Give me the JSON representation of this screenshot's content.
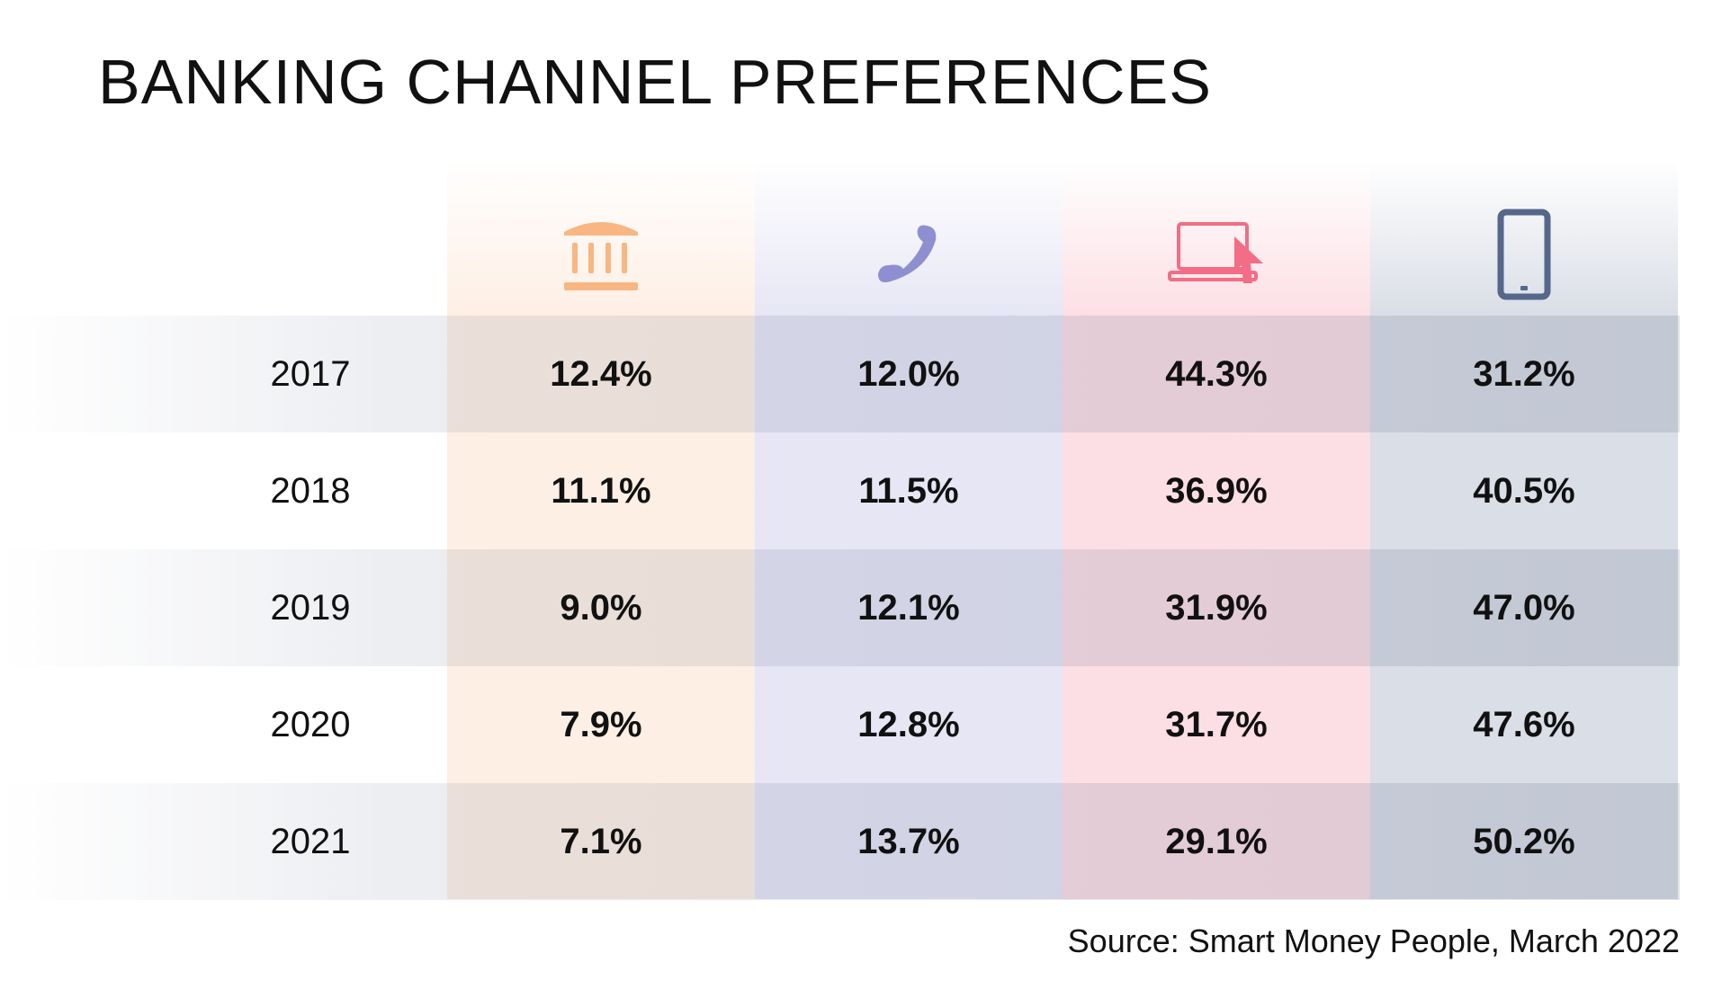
{
  "title": "BANKING CHANNEL PREFERENCES",
  "source": "Source: Smart Money People, March 2022",
  "colors": {
    "branch": "#f8b682",
    "telephone": "#8e8fd0",
    "online": "#f26d85",
    "mobile": "#55678b"
  },
  "chart_data": {
    "type": "table",
    "title": "BANKING CHANNEL PREFERENCES",
    "columns": [
      {
        "icon": "bank-branch-icon",
        "color": "#f8b682"
      },
      {
        "icon": "telephone-icon",
        "color": "#8e8fd0"
      },
      {
        "icon": "laptop-cursor-icon",
        "color": "#f26d85"
      },
      {
        "icon": "smartphone-icon",
        "color": "#55678b"
      }
    ],
    "rows": [
      {
        "year": "2017",
        "values": [
          "12.4%",
          "12.0%",
          "44.3%",
          "31.2%"
        ]
      },
      {
        "year": "2018",
        "values": [
          "11.1%",
          "11.5%",
          "36.9%",
          "40.5%"
        ]
      },
      {
        "year": "2019",
        "values": [
          "9.0%",
          "12.1%",
          "31.9%",
          "47.0%"
        ]
      },
      {
        "year": "2020",
        "values": [
          "7.9%",
          "12.8%",
          "31.7%",
          "47.6%"
        ]
      },
      {
        "year": "2021",
        "values": [
          "7.1%",
          "13.7%",
          "29.1%",
          "50.2%"
        ]
      }
    ]
  }
}
